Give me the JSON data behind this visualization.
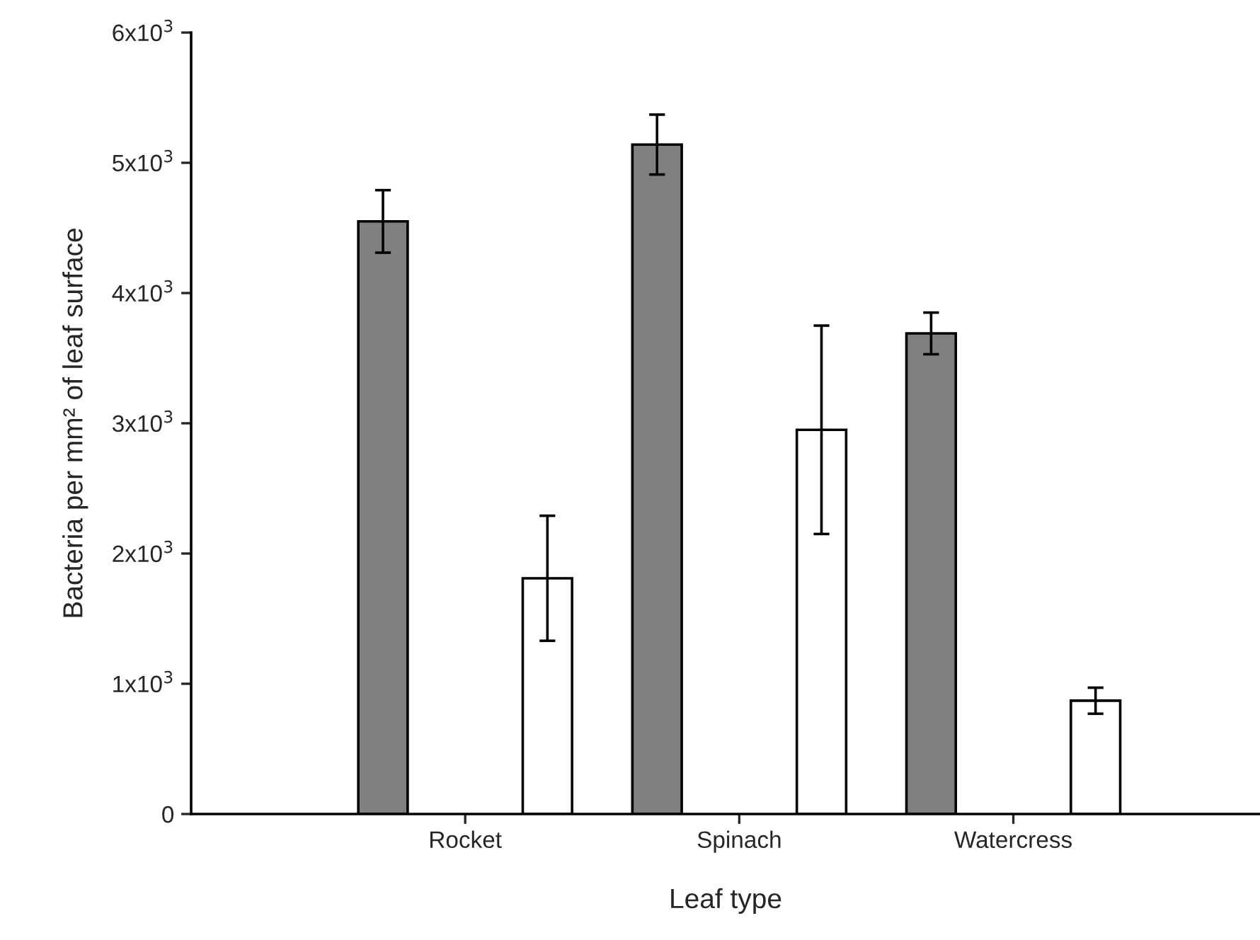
{
  "chart_data": {
    "type": "bar",
    "xlabel": "Leaf type",
    "ylabel": "Bacteria per mm² of leaf surface",
    "categories": [
      "Rocket",
      "Spinach",
      "Watercress"
    ],
    "series": [
      {
        "color": "#808080",
        "values": [
          4550,
          5140,
          3690
        ],
        "errors": [
          240,
          230,
          160
        ]
      },
      {
        "color": "#ffffff",
        "values": [
          1810,
          2950,
          870
        ],
        "errors": [
          480,
          800,
          100
        ]
      }
    ],
    "ylim": [
      0,
      6000
    ],
    "yticks": [
      0,
      {
        "value": 1000,
        "label": "1x10$^{3}$"
      },
      {
        "value": 2000,
        "label": "2x10$^{3}$"
      },
      {
        "value": 3000,
        "label": "3x10$^{3}$"
      },
      {
        "value": 4000,
        "label": "4x10$^{3}$"
      },
      {
        "value": 5000,
        "label": "5x10$^{3}$"
      },
      {
        "value": 6000,
        "label": "6x10$^{3}$"
      }
    ],
    "grid": false,
    "legend": false
  }
}
